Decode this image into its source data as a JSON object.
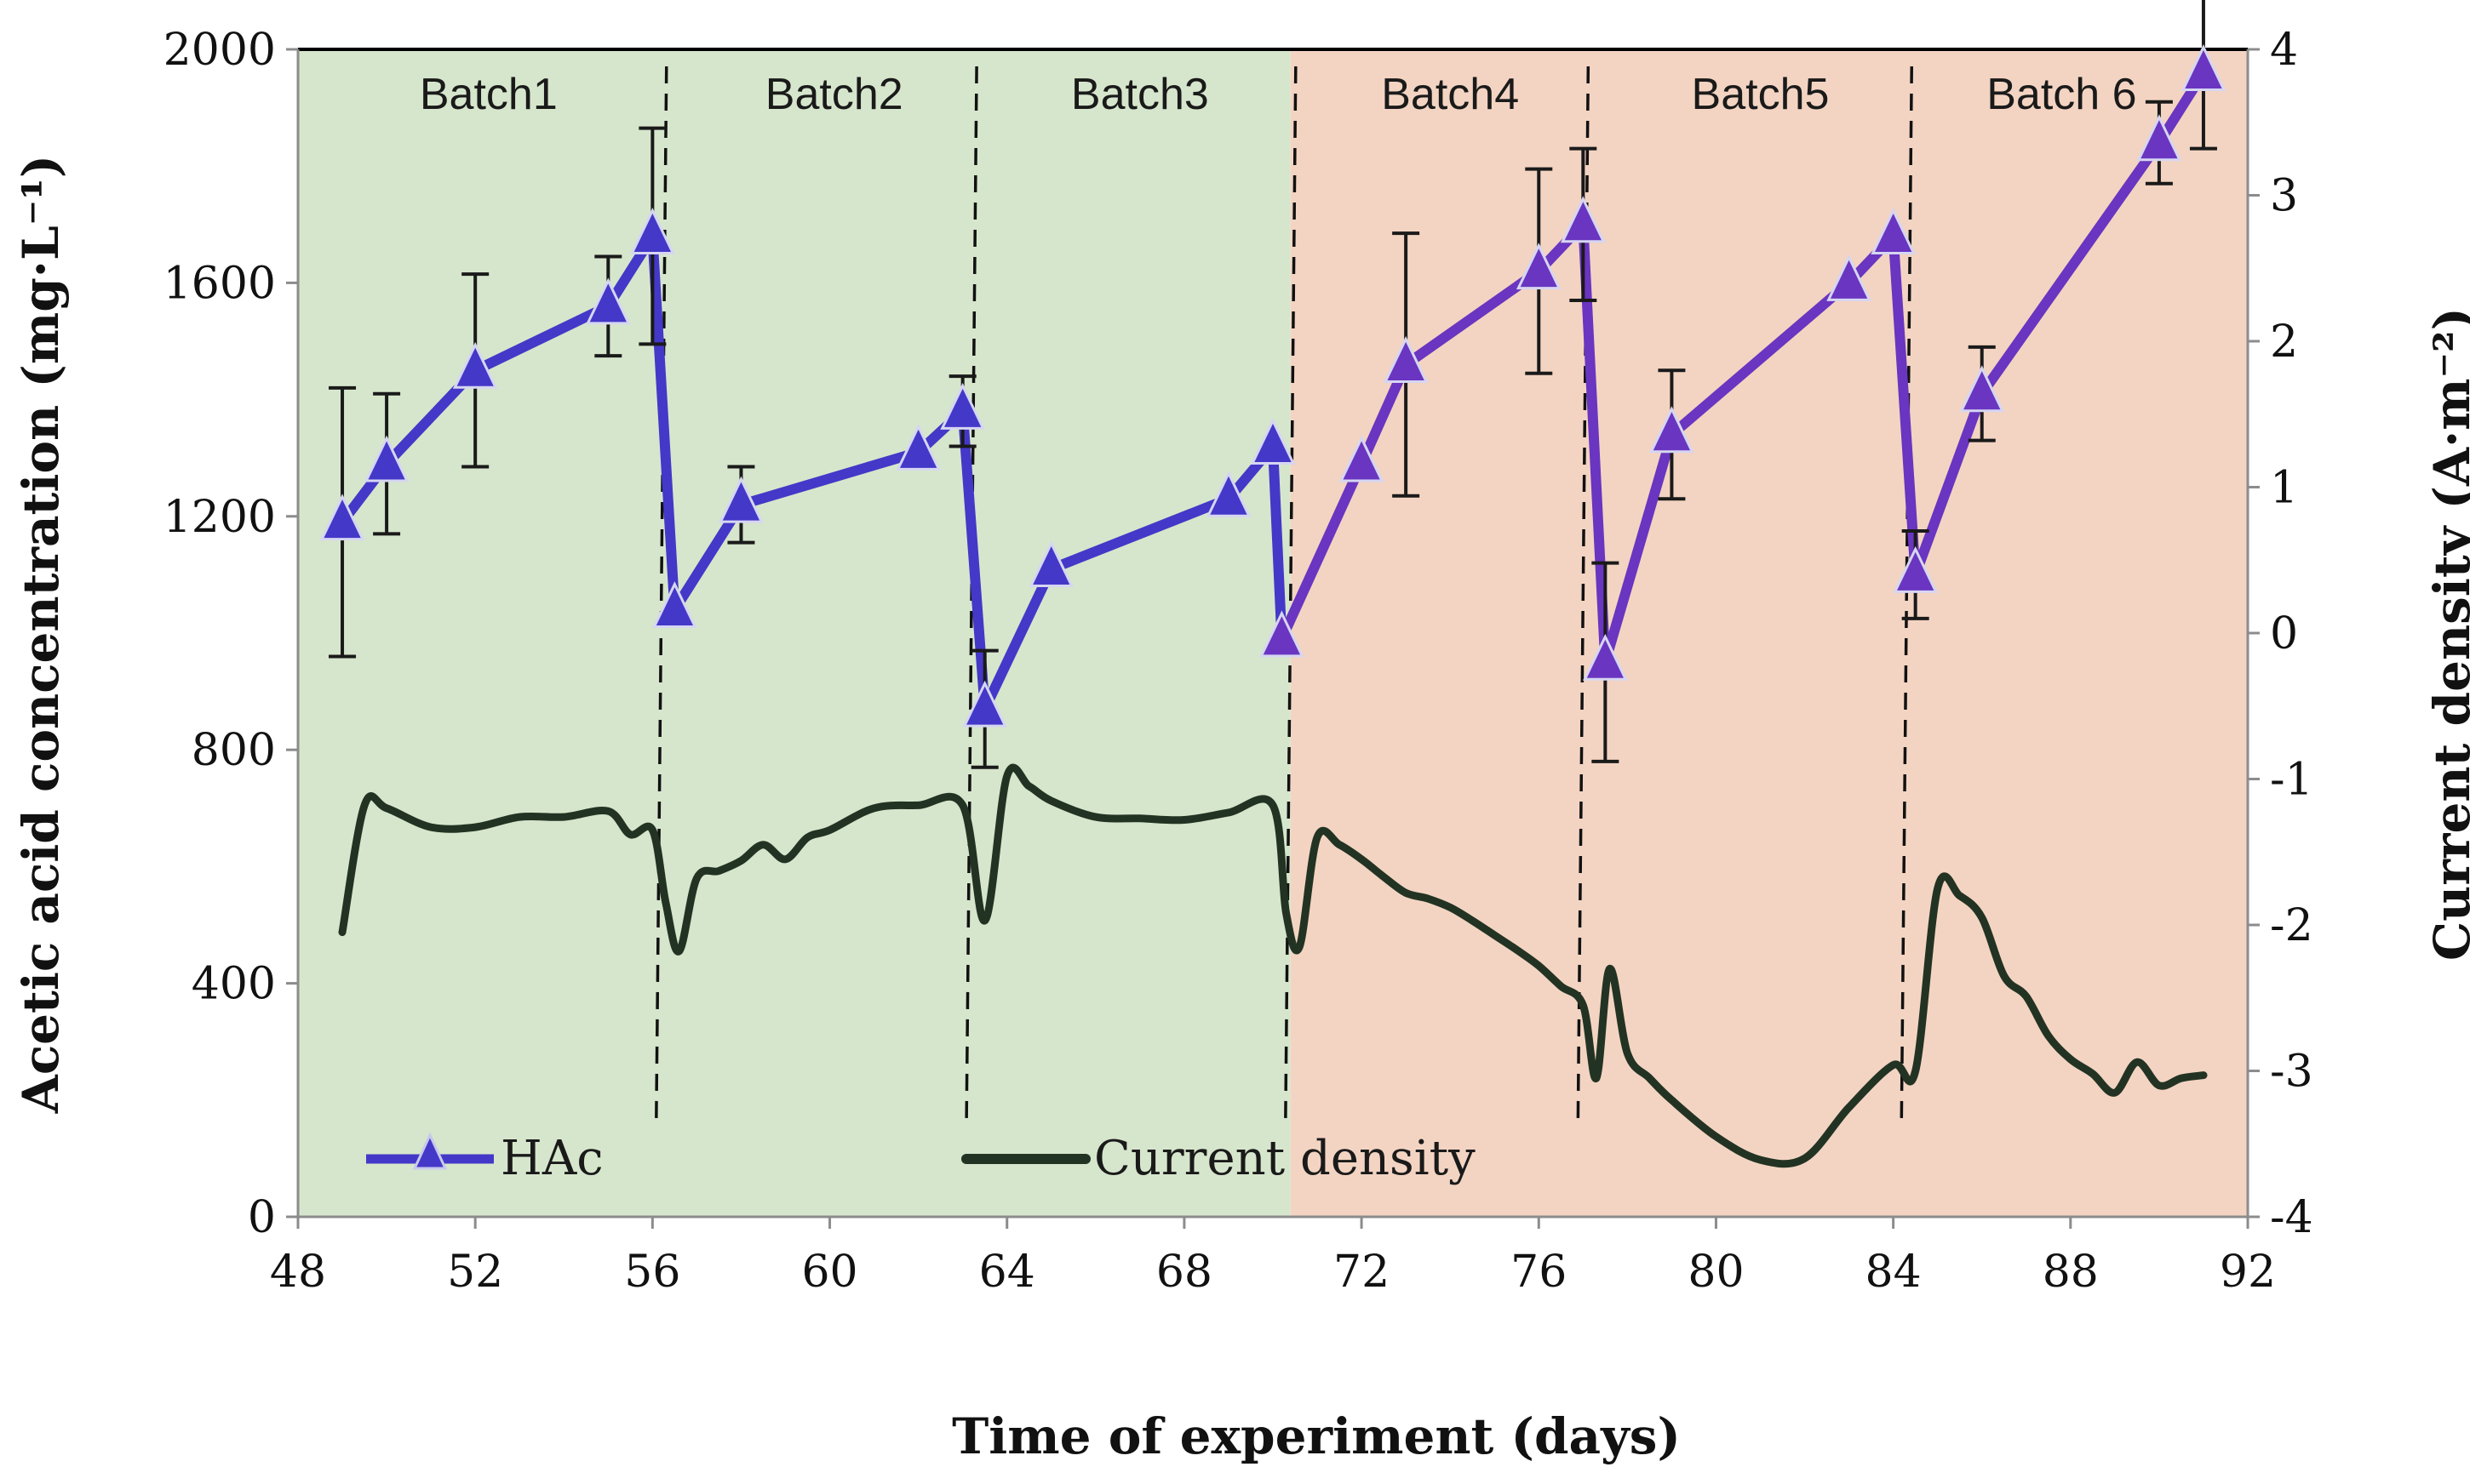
{
  "colors": {
    "hac": "#4438C8",
    "hac_batch4_6": "#6A35C0",
    "current": "#233323",
    "zone_pre": "#D6E6CC",
    "zone_post": "#F3D4C2"
  },
  "chart_data": {
    "type": "line",
    "title": "",
    "xlabel": "Time of experiment (days)",
    "ylabel_left": "Acetic acid concentration (mg·L⁻¹)",
    "ylabel_right": "Current density (A·m⁻²)",
    "xlim": [
      48,
      92
    ],
    "ylim_left": [
      0,
      2000
    ],
    "ylim_right": [
      -4,
      4
    ],
    "xticks": [
      "48",
      "52",
      "56",
      "60",
      "64",
      "68",
      "72",
      "76",
      "80",
      "84",
      "88",
      "92"
    ],
    "yticks_left": [
      "0",
      "400",
      "800",
      "1200",
      "1600",
      "2000"
    ],
    "yticks_right": [
      "-4",
      "-3",
      "-2",
      "-1",
      "0",
      "1",
      "2",
      "3",
      "4"
    ],
    "background_zones": [
      {
        "from": 48,
        "to": 70.4,
        "color_key": "zone_pre"
      },
      {
        "from": 70.4,
        "to": 92,
        "color_key": "zone_post"
      }
    ],
    "batch_boundaries": [
      56.2,
      63.2,
      70.4,
      77.0,
      84.3
    ],
    "batches": [
      {
        "label": "Batch1",
        "x": 52.3
      },
      {
        "label": "Batch2",
        "x": 60.1
      },
      {
        "label": "Batch3",
        "x": 67.0
      },
      {
        "label": "Batch4",
        "x": 74.0
      },
      {
        "label": "Batch5",
        "x": 81.0
      },
      {
        "label": "Batch 6",
        "x": 87.8
      }
    ],
    "legend": [
      {
        "name": "HAc",
        "marker": "triangle"
      },
      {
        "name": "Current density",
        "marker": "line"
      }
    ],
    "series": [
      {
        "name": "HAc",
        "axis": "left",
        "x": [
          49,
          50,
          52,
          55,
          56,
          56.5,
          58,
          62,
          63,
          63.5,
          65,
          69,
          70,
          70.2,
          72,
          73,
          76,
          77,
          77.5,
          79,
          83,
          84,
          84.5,
          86,
          90,
          91
        ],
        "y": [
          1190,
          1290,
          1450,
          1560,
          1680,
          1040,
          1220,
          1310,
          1380,
          870,
          1110,
          1230,
          1320,
          990,
          1290,
          1460,
          1620,
          1700,
          950,
          1340,
          1600,
          1680,
          1100,
          1410,
          1840,
          1960
        ],
        "err": [
          230,
          120,
          165,
          85,
          185,
          0,
          65,
          0,
          60,
          100,
          0,
          0,
          0,
          0,
          0,
          225,
          175,
          130,
          170,
          110,
          0,
          0,
          75,
          80,
          70,
          130
        ]
      },
      {
        "name": "Current density",
        "axis": "right",
        "x": [
          49,
          49.5,
          50,
          51,
          52,
          53,
          54,
          55,
          55.5,
          56,
          56.3,
          56.6,
          57,
          57.5,
          58,
          58.5,
          59,
          59.5,
          60,
          61,
          62,
          63,
          63.5,
          64,
          64.5,
          65,
          66,
          67,
          68,
          69,
          70,
          70.3,
          70.6,
          71,
          71.5,
          72,
          72.5,
          73,
          73.5,
          74,
          74.5,
          75,
          75.5,
          76,
          76.5,
          77,
          77.3,
          77.6,
          78,
          78.5,
          79,
          80,
          81,
          82,
          83,
          84,
          84.5,
          85,
          85.5,
          86,
          86.5,
          87,
          87.5,
          88,
          88.5,
          89,
          89.5,
          90,
          90.5,
          91
        ],
        "y": [
          -2.05,
          -1.18,
          -1.2,
          -1.33,
          -1.33,
          -1.26,
          -1.26,
          -1.22,
          -1.38,
          -1.35,
          -1.85,
          -2.18,
          -1.68,
          -1.63,
          -1.56,
          -1.45,
          -1.55,
          -1.4,
          -1.35,
          -1.2,
          -1.18,
          -1.18,
          -1.97,
          -0.98,
          -1.05,
          -1.15,
          -1.26,
          -1.27,
          -1.28,
          -1.23,
          -1.18,
          -1.92,
          -2.15,
          -1.4,
          -1.45,
          -1.55,
          -1.67,
          -1.78,
          -1.82,
          -1.88,
          -1.97,
          -2.07,
          -2.17,
          -2.28,
          -2.42,
          -2.55,
          -3.05,
          -2.3,
          -2.88,
          -3.05,
          -3.2,
          -3.45,
          -3.61,
          -3.6,
          -3.25,
          -2.96,
          -3.0,
          -1.75,
          -1.8,
          -1.95,
          -2.35,
          -2.49,
          -2.76,
          -2.92,
          -3.02,
          -3.15,
          -2.94,
          -3.1,
          -3.05,
          -3.03
        ]
      }
    ]
  }
}
